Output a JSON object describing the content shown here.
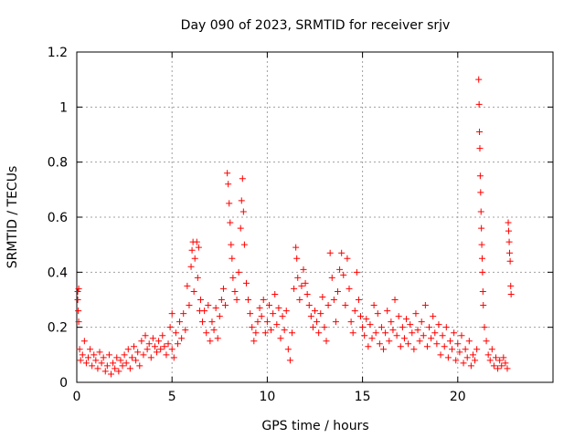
{
  "chart_data": {
    "type": "scatter",
    "title": "Day 090 of 2023, SRMTID for receiver srjv",
    "xlabel": "GPS time / hours",
    "ylabel": "SRMTID / TECUs",
    "xlim": [
      0,
      25
    ],
    "ylim": [
      0,
      1.2
    ],
    "xticks": [
      0,
      5,
      10,
      15,
      20
    ],
    "xtick_labels": [
      "0",
      "5",
      "10",
      "15",
      "20"
    ],
    "yticks": [
      0,
      0.2,
      0.4,
      0.6,
      0.8,
      1.0,
      1.2
    ],
    "ytick_labels": [
      "0",
      "0.2",
      "0.4",
      "0.6",
      "0.8",
      "1",
      "1.2"
    ],
    "grid": true,
    "marker": "+",
    "color": "#ff0000",
    "series": [
      {
        "name": "srjv",
        "points": [
          [
            0.05,
            0.33
          ],
          [
            0.05,
            0.3
          ],
          [
            0.08,
            0.26
          ],
          [
            0.1,
            0.34
          ],
          [
            0.1,
            0.22
          ],
          [
            0.15,
            0.12
          ],
          [
            0.2,
            0.08
          ],
          [
            0.3,
            0.1
          ],
          [
            0.4,
            0.15
          ],
          [
            0.5,
            0.07
          ],
          [
            0.6,
            0.09
          ],
          [
            0.7,
            0.12
          ],
          [
            0.8,
            0.06
          ],
          [
            0.9,
            0.1
          ],
          [
            1.0,
            0.08
          ],
          [
            1.1,
            0.05
          ],
          [
            1.2,
            0.11
          ],
          [
            1.3,
            0.07
          ],
          [
            1.4,
            0.09
          ],
          [
            1.5,
            0.04
          ],
          [
            1.6,
            0.06
          ],
          [
            1.7,
            0.1
          ],
          [
            1.8,
            0.03
          ],
          [
            1.9,
            0.07
          ],
          [
            2.0,
            0.05
          ],
          [
            2.1,
            0.09
          ],
          [
            2.2,
            0.04
          ],
          [
            2.3,
            0.08
          ],
          [
            2.4,
            0.06
          ],
          [
            2.5,
            0.1
          ],
          [
            2.6,
            0.07
          ],
          [
            2.7,
            0.12
          ],
          [
            2.8,
            0.05
          ],
          [
            2.9,
            0.09
          ],
          [
            3.0,
            0.13
          ],
          [
            3.1,
            0.08
          ],
          [
            3.2,
            0.11
          ],
          [
            3.3,
            0.06
          ],
          [
            3.4,
            0.15
          ],
          [
            3.5,
            0.1
          ],
          [
            3.6,
            0.17
          ],
          [
            3.7,
            0.12
          ],
          [
            3.8,
            0.14
          ],
          [
            3.9,
            0.09
          ],
          [
            4.0,
            0.16
          ],
          [
            4.1,
            0.13
          ],
          [
            4.2,
            0.11
          ],
          [
            4.3,
            0.15
          ],
          [
            4.4,
            0.12
          ],
          [
            4.5,
            0.17
          ],
          [
            4.6,
            0.13
          ],
          [
            4.7,
            0.1
          ],
          [
            4.8,
            0.14
          ],
          [
            4.9,
            0.2
          ],
          [
            5.0,
            0.12
          ],
          [
            5.0,
            0.25
          ],
          [
            5.1,
            0.09
          ],
          [
            5.2,
            0.18
          ],
          [
            5.3,
            0.14
          ],
          [
            5.4,
            0.22
          ],
          [
            5.5,
            0.16
          ],
          [
            5.6,
            0.25
          ],
          [
            5.7,
            0.19
          ],
          [
            5.8,
            0.35
          ],
          [
            5.9,
            0.28
          ],
          [
            6.0,
            0.42
          ],
          [
            6.05,
            0.48
          ],
          [
            6.1,
            0.51
          ],
          [
            6.15,
            0.33
          ],
          [
            6.2,
            0.45
          ],
          [
            6.3,
            0.51
          ],
          [
            6.35,
            0.38
          ],
          [
            6.4,
            0.49
          ],
          [
            6.45,
            0.26
          ],
          [
            6.5,
            0.3
          ],
          [
            6.6,
            0.22
          ],
          [
            6.7,
            0.26
          ],
          [
            6.8,
            0.18
          ],
          [
            6.9,
            0.28
          ],
          [
            7.0,
            0.15
          ],
          [
            7.1,
            0.22
          ],
          [
            7.2,
            0.19
          ],
          [
            7.3,
            0.27
          ],
          [
            7.4,
            0.16
          ],
          [
            7.5,
            0.24
          ],
          [
            7.6,
            0.3
          ],
          [
            7.7,
            0.34
          ],
          [
            7.8,
            0.28
          ],
          [
            7.9,
            0.76
          ],
          [
            7.95,
            0.72
          ],
          [
            8.0,
            0.65
          ],
          [
            8.05,
            0.58
          ],
          [
            8.1,
            0.5
          ],
          [
            8.15,
            0.45
          ],
          [
            8.2,
            0.38
          ],
          [
            8.3,
            0.33
          ],
          [
            8.4,
            0.3
          ],
          [
            8.5,
            0.4
          ],
          [
            8.6,
            0.56
          ],
          [
            8.65,
            0.66
          ],
          [
            8.7,
            0.74
          ],
          [
            8.75,
            0.62
          ],
          [
            8.8,
            0.5
          ],
          [
            8.9,
            0.36
          ],
          [
            9.0,
            0.3
          ],
          [
            9.1,
            0.25
          ],
          [
            9.2,
            0.2
          ],
          [
            9.3,
            0.15
          ],
          [
            9.4,
            0.18
          ],
          [
            9.5,
            0.22
          ],
          [
            9.6,
            0.27
          ],
          [
            9.7,
            0.24
          ],
          [
            9.8,
            0.3
          ],
          [
            9.9,
            0.18
          ],
          [
            10.0,
            0.22
          ],
          [
            10.1,
            0.28
          ],
          [
            10.2,
            0.19
          ],
          [
            10.3,
            0.25
          ],
          [
            10.4,
            0.32
          ],
          [
            10.5,
            0.21
          ],
          [
            10.6,
            0.27
          ],
          [
            10.7,
            0.16
          ],
          [
            10.8,
            0.24
          ],
          [
            10.9,
            0.19
          ],
          [
            11.0,
            0.26
          ],
          [
            11.1,
            0.12
          ],
          [
            11.2,
            0.08
          ],
          [
            11.3,
            0.18
          ],
          [
            11.4,
            0.34
          ],
          [
            11.5,
            0.49
          ],
          [
            11.55,
            0.45
          ],
          [
            11.6,
            0.38
          ],
          [
            11.7,
            0.3
          ],
          [
            11.8,
            0.35
          ],
          [
            11.9,
            0.41
          ],
          [
            12.0,
            0.36
          ],
          [
            12.1,
            0.32
          ],
          [
            12.2,
            0.28
          ],
          [
            12.3,
            0.24
          ],
          [
            12.4,
            0.2
          ],
          [
            12.5,
            0.26
          ],
          [
            12.6,
            0.22
          ],
          [
            12.7,
            0.18
          ],
          [
            12.8,
            0.25
          ],
          [
            12.9,
            0.31
          ],
          [
            13.0,
            0.2
          ],
          [
            13.1,
            0.15
          ],
          [
            13.2,
            0.28
          ],
          [
            13.3,
            0.47
          ],
          [
            13.4,
            0.38
          ],
          [
            13.5,
            0.3
          ],
          [
            13.6,
            0.22
          ],
          [
            13.7,
            0.33
          ],
          [
            13.8,
            0.41
          ],
          [
            13.9,
            0.47
          ],
          [
            14.0,
            0.39
          ],
          [
            14.1,
            0.28
          ],
          [
            14.2,
            0.45
          ],
          [
            14.3,
            0.34
          ],
          [
            14.4,
            0.22
          ],
          [
            14.5,
            0.18
          ],
          [
            14.6,
            0.26
          ],
          [
            14.7,
            0.4
          ],
          [
            14.8,
            0.3
          ],
          [
            14.9,
            0.24
          ],
          [
            15.0,
            0.2
          ],
          [
            15.1,
            0.17
          ],
          [
            15.2,
            0.23
          ],
          [
            15.3,
            0.13
          ],
          [
            15.4,
            0.21
          ],
          [
            15.5,
            0.16
          ],
          [
            15.6,
            0.28
          ],
          [
            15.7,
            0.18
          ],
          [
            15.8,
            0.25
          ],
          [
            15.9,
            0.14
          ],
          [
            16.0,
            0.2
          ],
          [
            16.1,
            0.12
          ],
          [
            16.2,
            0.18
          ],
          [
            16.3,
            0.26
          ],
          [
            16.4,
            0.15
          ],
          [
            16.5,
            0.22
          ],
          [
            16.6,
            0.19
          ],
          [
            16.7,
            0.3
          ],
          [
            16.8,
            0.17
          ],
          [
            16.9,
            0.24
          ],
          [
            17.0,
            0.13
          ],
          [
            17.1,
            0.2
          ],
          [
            17.2,
            0.16
          ],
          [
            17.3,
            0.23
          ],
          [
            17.4,
            0.14
          ],
          [
            17.5,
            0.21
          ],
          [
            17.6,
            0.18
          ],
          [
            17.7,
            0.12
          ],
          [
            17.8,
            0.25
          ],
          [
            17.9,
            0.19
          ],
          [
            18.0,
            0.15
          ],
          [
            18.1,
            0.22
          ],
          [
            18.2,
            0.17
          ],
          [
            18.3,
            0.28
          ],
          [
            18.4,
            0.13
          ],
          [
            18.5,
            0.2
          ],
          [
            18.6,
            0.16
          ],
          [
            18.7,
            0.24
          ],
          [
            18.8,
            0.18
          ],
          [
            18.9,
            0.14
          ],
          [
            19.0,
            0.21
          ],
          [
            19.1,
            0.1
          ],
          [
            19.2,
            0.17
          ],
          [
            19.3,
            0.13
          ],
          [
            19.4,
            0.2
          ],
          [
            19.5,
            0.09
          ],
          [
            19.6,
            0.15
          ],
          [
            19.7,
            0.12
          ],
          [
            19.8,
            0.18
          ],
          [
            19.9,
            0.08
          ],
          [
            20.0,
            0.14
          ],
          [
            20.1,
            0.11
          ],
          [
            20.2,
            0.17
          ],
          [
            20.3,
            0.07
          ],
          [
            20.4,
            0.12
          ],
          [
            20.5,
            0.09
          ],
          [
            20.6,
            0.15
          ],
          [
            20.7,
            0.06
          ],
          [
            20.8,
            0.1
          ],
          [
            20.9,
            0.08
          ],
          [
            21.0,
            0.12
          ],
          [
            21.1,
            1.1
          ],
          [
            21.12,
            1.01
          ],
          [
            21.14,
            0.91
          ],
          [
            21.16,
            0.85
          ],
          [
            21.18,
            0.75
          ],
          [
            21.2,
            0.69
          ],
          [
            21.22,
            0.62
          ],
          [
            21.24,
            0.56
          ],
          [
            21.26,
            0.5
          ],
          [
            21.28,
            0.45
          ],
          [
            21.3,
            0.4
          ],
          [
            21.32,
            0.33
          ],
          [
            21.34,
            0.28
          ],
          [
            21.4,
            0.2
          ],
          [
            21.5,
            0.15
          ],
          [
            21.6,
            0.1
          ],
          [
            21.7,
            0.08
          ],
          [
            21.8,
            0.12
          ],
          [
            21.9,
            0.06
          ],
          [
            22.0,
            0.09
          ],
          [
            22.1,
            0.05
          ],
          [
            22.2,
            0.08
          ],
          [
            22.3,
            0.06
          ],
          [
            22.4,
            0.09
          ],
          [
            22.5,
            0.07
          ],
          [
            22.6,
            0.05
          ],
          [
            22.65,
            0.58
          ],
          [
            22.67,
            0.55
          ],
          [
            22.7,
            0.51
          ],
          [
            22.72,
            0.47
          ],
          [
            22.75,
            0.44
          ],
          [
            22.78,
            0.35
          ],
          [
            22.8,
            0.32
          ]
        ]
      }
    ]
  }
}
